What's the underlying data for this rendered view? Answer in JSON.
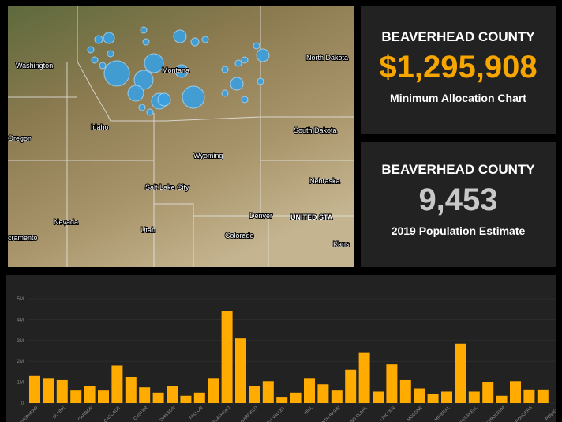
{
  "map": {
    "labels": [
      "Washington",
      "Montana",
      "North Dakota",
      "Idaho",
      "Oregon",
      "South Dakota",
      "Wyoming",
      "Nebraska",
      "Salt Lake City",
      "Nevada",
      "Utah",
      "Denver",
      "Colorado",
      "UNITED STA",
      "Kans",
      "cramento"
    ]
  },
  "cards": [
    {
      "title": "BEAVERHEAD COUNTY",
      "value": "$1,295,908",
      "caption": "Minimum Allocation Chart"
    },
    {
      "title": "BEAVERHEAD COUNTY",
      "value": "9,453",
      "caption": "2019 Population Estimate"
    }
  ],
  "chart_data": {
    "type": "bar",
    "color": "#ffab00",
    "grid": true,
    "categories": [
      "BEAVERHEAD",
      null,
      "BLAINE",
      null,
      "CARBON",
      null,
      "CASCADE",
      null,
      "CUSTER",
      null,
      "DAWSON",
      null,
      "FALLON",
      null,
      "FLATHEAD",
      null,
      "GARFIELD",
      null,
      "GOLDEN VALLEY",
      null,
      "HILL",
      null,
      "JUDITH BASIN",
      null,
      "LEWIS AND CLARK",
      null,
      "LINCOLN",
      null,
      "MCCONE",
      null,
      "MINERAL",
      null,
      "MUSSELSHELL",
      null,
      "PETROLEUM",
      null,
      "PONDERA",
      null,
      "POWELL"
    ],
    "values": [
      1295908,
      1200000,
      1100000,
      600000,
      800000,
      600000,
      1800000,
      1250000,
      750000,
      500000,
      800000,
      350000,
      500000,
      1200000,
      4400000,
      3100000,
      800000,
      1050000,
      300000,
      500000,
      1200000,
      900000,
      600000,
      1600000,
      2400000,
      550000,
      1850000,
      1100000,
      700000,
      450000,
      550000,
      2850000,
      550000,
      1000000,
      350000,
      1050000,
      650000,
      650000,
      null
    ],
    "ylim": [
      0,
      5000000
    ],
    "yticks": [
      0,
      {
        "value": 1000000,
        "label": "1M"
      },
      {
        "value": 2000000,
        "label": "2M"
      },
      {
        "value": 3000000,
        "label": "3M"
      },
      {
        "value": 4000000,
        "label": "4M"
      },
      {
        "value": 5000000,
        "label": "5M"
      }
    ]
  }
}
